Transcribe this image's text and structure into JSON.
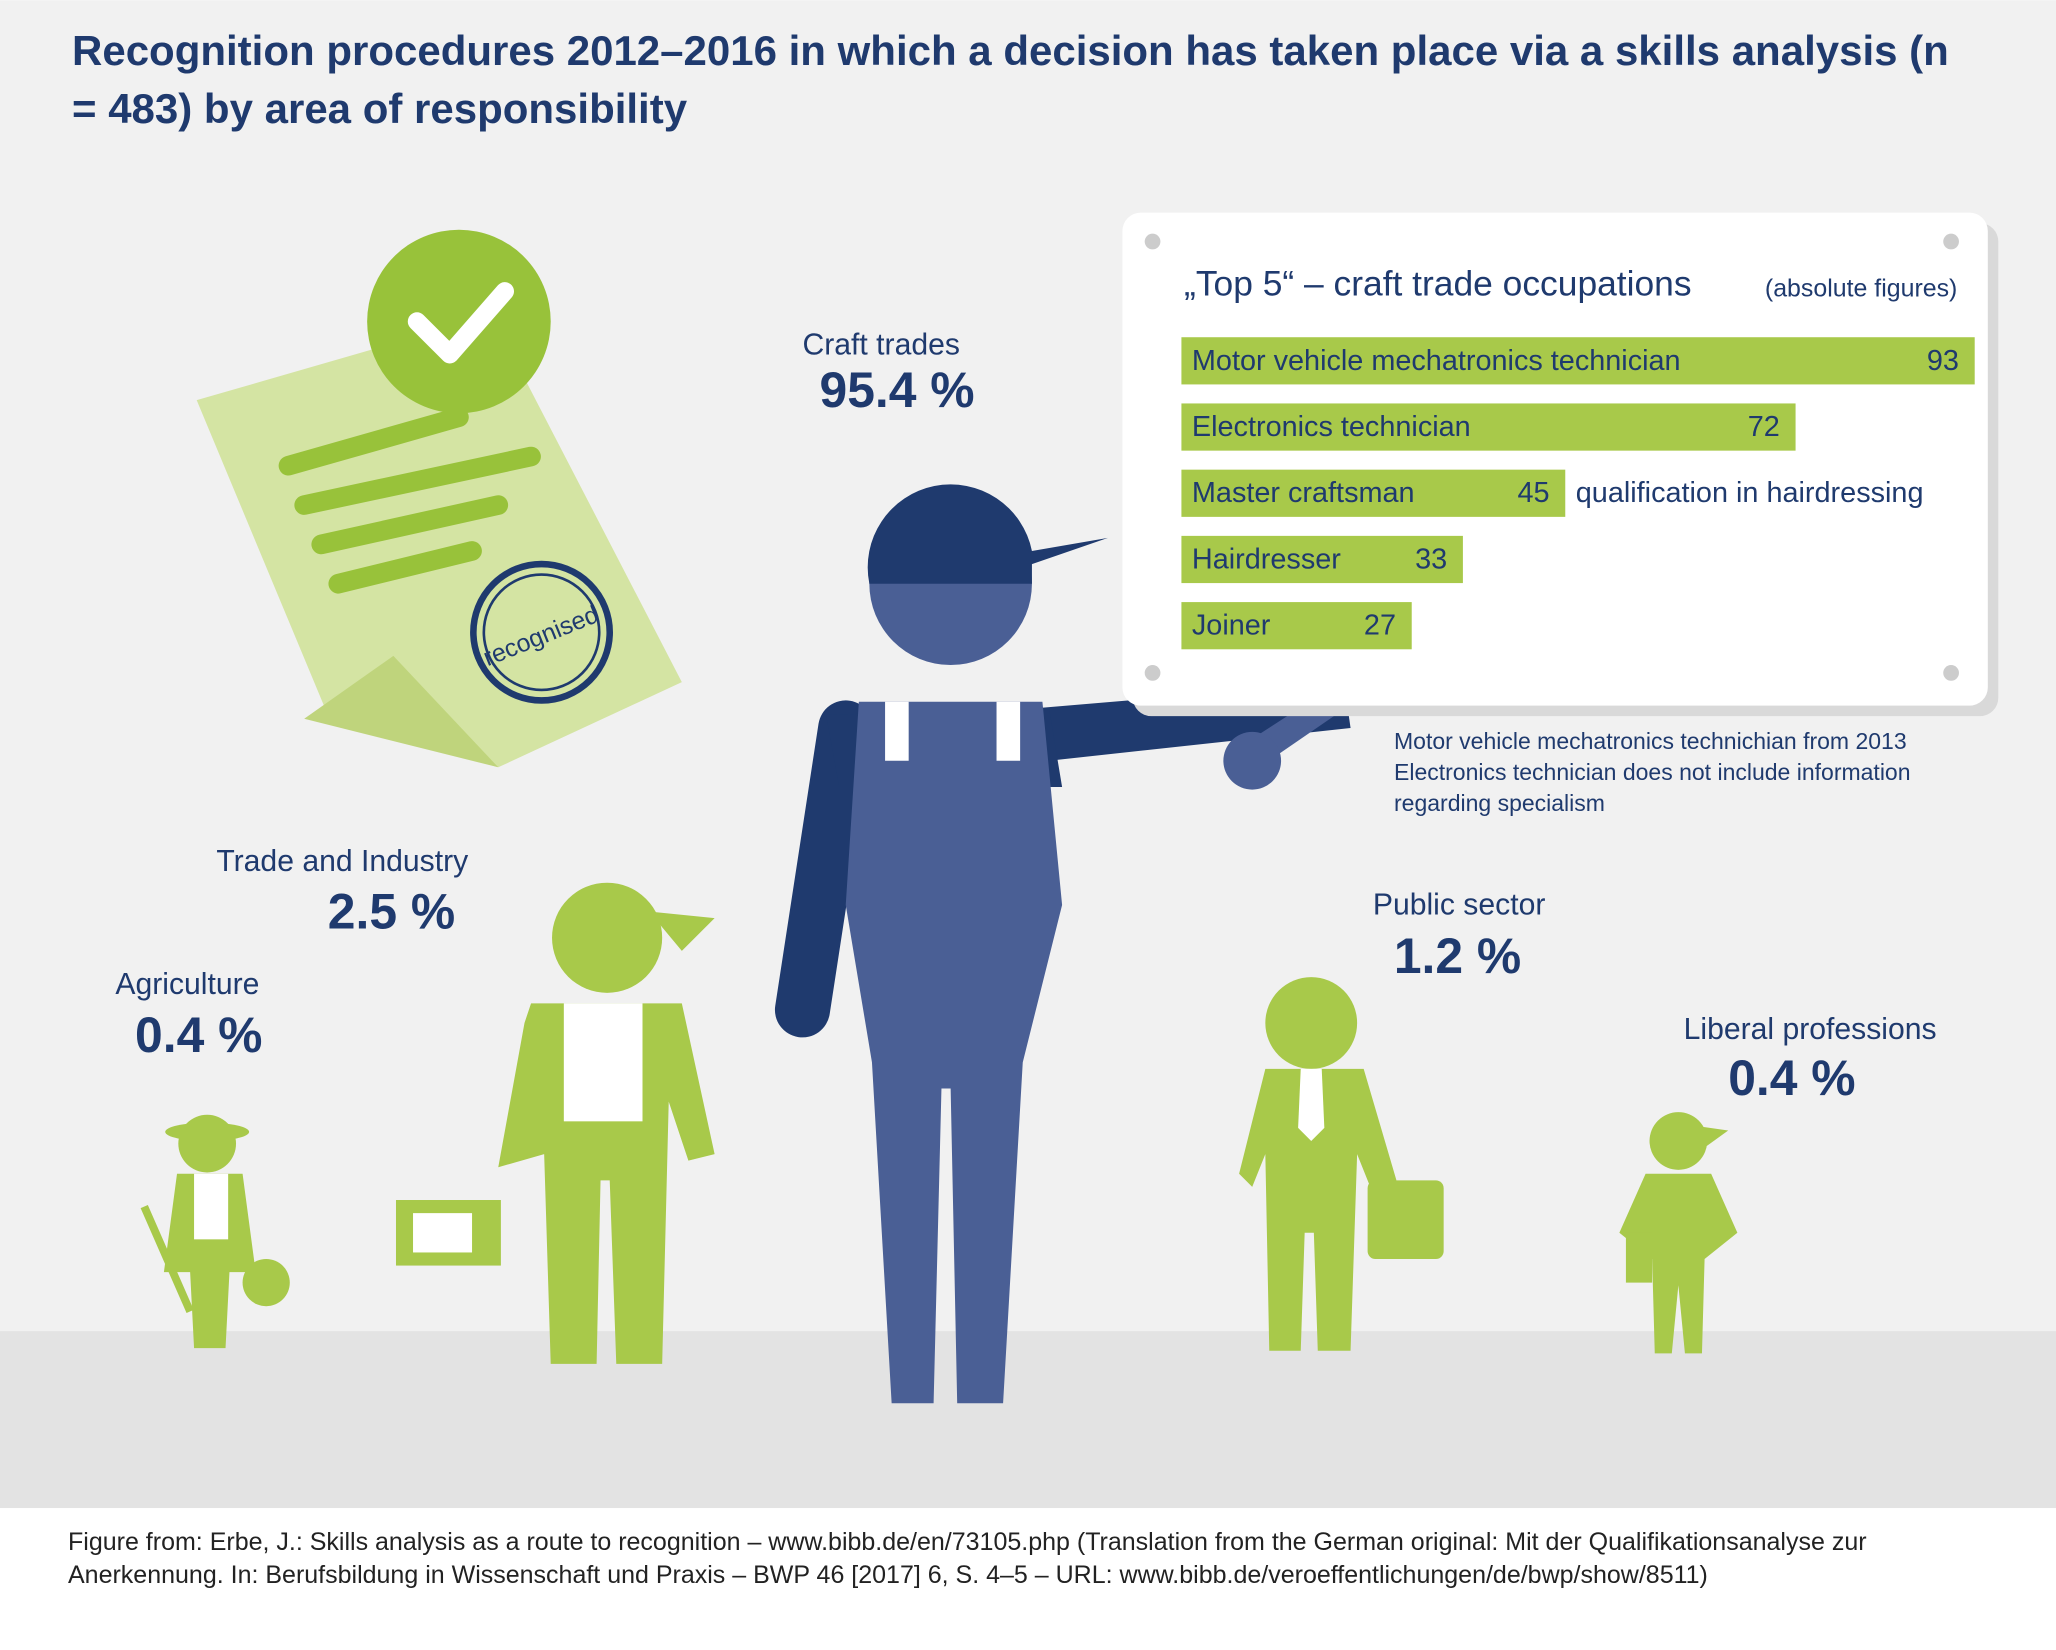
{
  "title": "Recognition procedures 2012–2016 in which a decision has taken place via a skills analysis (n = 483) by area of responsibility",
  "areas": [
    {
      "name": "Craft trades",
      "share": "95.4 %"
    },
    {
      "name": "Trade and Industry",
      "share": "2.5 %"
    },
    {
      "name": "Agriculture",
      "share": "0.4 %"
    },
    {
      "name": "Public sector",
      "share": "1.2 %"
    },
    {
      "name": "Liberal professions",
      "share": "0.4 %"
    }
  ],
  "stamp": "recognised",
  "chart_data": {
    "type": "bar",
    "title": "„Top 5“ – craft trade occupations",
    "subtitle": "(absolute figures)",
    "categories": [
      "Motor vehicle mechatronics technician",
      "Electronics technician",
      "Master craftsman",
      "Hairdresser",
      "Joiner"
    ],
    "values": [
      93,
      72,
      45,
      33,
      27
    ],
    "annotation": "qualification in hairdressing",
    "color": "#a8c94a",
    "xlim": [
      0,
      93
    ]
  },
  "notes": [
    "Motor vehicle mechatronics technichian from 2013",
    "Electronics technician does not include information regarding specialism"
  ],
  "source": "Figure from: Erbe, J.: Skills analysis as a route to recognition – www.bibb.de/en/73105.php (Translation from the German original: Mit der Qualifikationsanalyse zur Anerkennung. In: Berufsbildung in Wissenschaft und Praxis – BWP 46 [2017] 6, S. 4–5 – URL: www.bibb.de/veroeffentlichungen/de/bwp/show/8511)"
}
